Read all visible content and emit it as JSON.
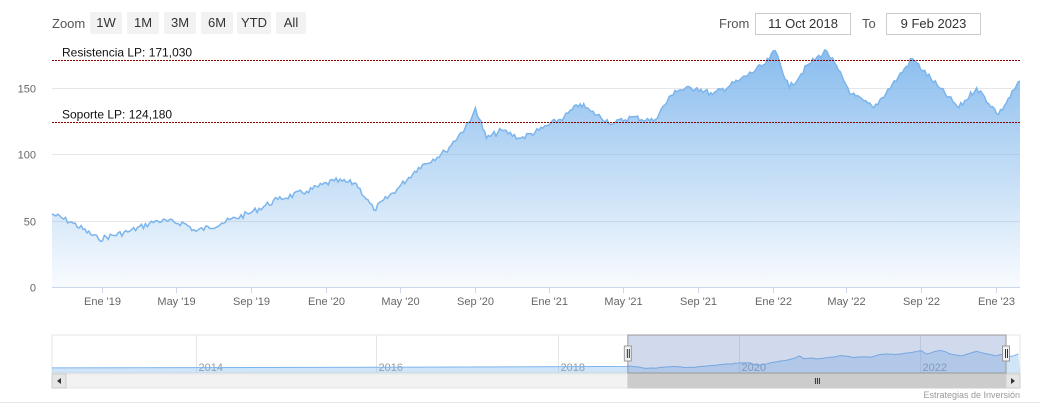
{
  "toolbar": {
    "zoom_label": "Zoom",
    "zoom_buttons": [
      "1W",
      "1M",
      "3M",
      "6M",
      "YTD",
      "All"
    ],
    "from_label": "From",
    "from_value": "11 Oct 2018",
    "to_label": "To",
    "to_value": "9 Feb 2023"
  },
  "credits": "Estrategias de Inversión",
  "colors": {
    "line": "#7cb5ec",
    "fill_top": "#7cb5ec",
    "level_line": "#8b0000",
    "navigator_mask": "#6685c2",
    "grid": "#e6e6e6"
  },
  "chart_data": {
    "type": "area",
    "x_range": [
      "2018-10-11",
      "2023-02-09"
    ],
    "x_ticks": [
      "Ene '19",
      "May '19",
      "Sep '19",
      "Ene '20",
      "May '20",
      "Sep '20",
      "Ene '21",
      "May '21",
      "Sep '21",
      "Ene '22",
      "May '22",
      "Sep '22",
      "Ene '23"
    ],
    "y_ticks": [
      "0",
      "50",
      "100",
      "150"
    ],
    "ylim": [
      0,
      180
    ],
    "grid": "horizontal",
    "levels": [
      {
        "label": "Resistencia LP: 171,030",
        "value": 171.03
      },
      {
        "label": "Soporte LP: 124,180",
        "value": 124.18
      }
    ],
    "series": [
      {
        "x": [
          "2018-10-11",
          "2018-11-15",
          "2018-12-26",
          "2019-02-15",
          "2019-04-01",
          "2019-05-15",
          "2019-06-03",
          "2019-07-15",
          "2019-09-01",
          "2019-10-15",
          "2019-12-01",
          "2020-01-15",
          "2020-02-20",
          "2020-03-20",
          "2020-04-30",
          "2020-06-01",
          "2020-07-15",
          "2020-08-25",
          "2020-09-02",
          "2020-09-20",
          "2020-10-15",
          "2020-11-15",
          "2020-12-15",
          "2021-01-25",
          "2021-02-20",
          "2021-03-10",
          "2021-04-15",
          "2021-05-15",
          "2021-06-20",
          "2021-07-25",
          "2021-08-30",
          "2021-09-25",
          "2021-11-05",
          "2021-12-20",
          "2022-01-05",
          "2022-01-28",
          "2022-03-01",
          "2022-03-30",
          "2022-05-10",
          "2022-06-15",
          "2022-07-25",
          "2022-08-17",
          "2022-09-30",
          "2022-11-01",
          "2022-11-30",
          "2023-01-05",
          "2023-02-09"
        ],
        "y": [
          55,
          48,
          36,
          42,
          50,
          48,
          42,
          48,
          56,
          66,
          72,
          80,
          78,
          58,
          75,
          90,
          102,
          125,
          135,
          112,
          118,
          112,
          118,
          128,
          138,
          132,
          123,
          128,
          125,
          148,
          150,
          145,
          155,
          168,
          178,
          150,
          168,
          178,
          145,
          135,
          158,
          172,
          150,
          135,
          150,
          130,
          155
        ]
      }
    ],
    "navigator": {
      "x_ticks": [
        "2014",
        "2016",
        "2018",
        "2020",
        "2022"
      ],
      "selected_range": [
        "2018-10-11",
        "2023-02-09"
      ]
    }
  }
}
